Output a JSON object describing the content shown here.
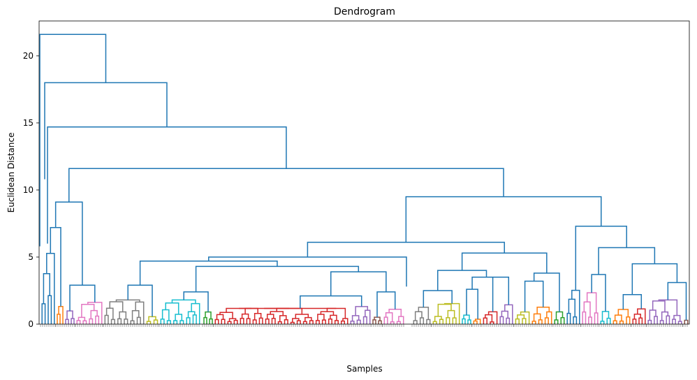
{
  "chart_data": {
    "type": "dendrogram",
    "title": "Dendrogram",
    "xlabel": "Samples",
    "ylabel": "Euclidean Distance",
    "ylim": [
      0,
      22.6
    ],
    "yticks": [
      0,
      5,
      10,
      15,
      20
    ],
    "ytick_labels": [
      "0",
      "5",
      "10",
      "15",
      "20"
    ],
    "grid": false,
    "link_color": "#1f77b4",
    "palette": [
      "#1f77b4",
      "#ff7f0e",
      "#2ca02c",
      "#d62728",
      "#9467bd",
      "#8c564b",
      "#e377c2",
      "#7f7f7f",
      "#bcbd22",
      "#17becf"
    ],
    "top_merges": [
      {
        "height": 21.6,
        "children": [
          "singleton",
          "rest"
        ]
      },
      {
        "height": 18.0,
        "children": [
          "singleton",
          "rest"
        ]
      },
      {
        "height": 14.7,
        "children": [
          "left-group",
          "rest"
        ]
      },
      {
        "height": 11.6,
        "children": [
          "left-group",
          "main"
        ]
      },
      {
        "height": 9.5,
        "children": [
          "center",
          "right"
        ]
      },
      {
        "height": 7.3,
        "children": [
          "right-a",
          "right-b"
        ]
      },
      {
        "height": 6.1,
        "children": [
          "center-a",
          "center-b"
        ]
      },
      {
        "height": 5.3,
        "children": [
          "right-c",
          "right-d"
        ]
      },
      {
        "height": 5.0,
        "children": [
          "center-c",
          "center-d"
        ]
      },
      {
        "height": 4.7,
        "children": [
          "center-e",
          "center-f"
        ]
      },
      {
        "height": 4.3,
        "children": [
          "center-g",
          "center-h"
        ]
      }
    ],
    "leaf_cluster_colors": [
      "#1f77b4",
      "#ff7f0e",
      "#2ca02c",
      "#d62728",
      "#9467bd",
      "#8c564b",
      "#e377c2",
      "#7f7f7f",
      "#bcbd22",
      "#17becf",
      "#1f77b4",
      "#ff7f0e",
      "#2ca02c",
      "#d62728",
      "#9467bd",
      "#8c564b",
      "#e377c2",
      "#7f7f7f",
      "#bcbd22",
      "#17becf"
    ]
  }
}
